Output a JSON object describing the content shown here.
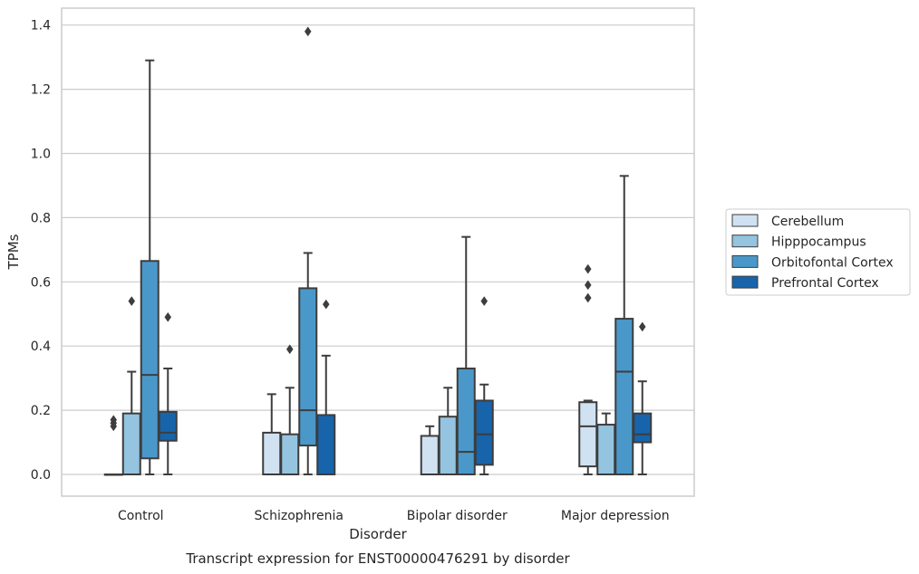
{
  "chart_data": {
    "type": "box",
    "title": "Transcript expression for ENST00000476291 by disorder",
    "xlabel": "Disorder",
    "ylabel": "TPMs",
    "ylim": [
      -0.065,
      1.45
    ],
    "yticks": [
      "0.0",
      "0.2",
      "0.4",
      "0.6",
      "0.8",
      "1.0",
      "1.2",
      "1.4"
    ],
    "categories": [
      "Control",
      "Schizophrenia",
      "Bipolar disorder",
      "Major depression"
    ],
    "grid": true,
    "legend_position": "right",
    "series": [
      {
        "name": "Cerebellum",
        "color": "#d0e1f2",
        "boxes": [
          {
            "whislo": 0.0,
            "q1": 0.0,
            "med": 0.0,
            "q3": 0.0,
            "whishi": 0.0,
            "fliers": [
              0.15,
              0.16,
              0.17
            ]
          },
          {
            "whislo": 0.0,
            "q1": 0.0,
            "med": 0.0,
            "q3": 0.13,
            "whishi": 0.25,
            "fliers": []
          },
          {
            "whislo": 0.0,
            "q1": 0.0,
            "med": 0.0,
            "q3": 0.12,
            "whishi": 0.15,
            "fliers": []
          },
          {
            "whislo": 0.0,
            "q1": 0.025,
            "med": 0.15,
            "q3": 0.225,
            "whishi": 0.23,
            "fliers": [
              0.55,
              0.59,
              0.64
            ]
          }
        ]
      },
      {
        "name": "Hipppocampus",
        "color": "#94c4df",
        "boxes": [
          {
            "whislo": 0.0,
            "q1": 0.0,
            "med": 0.0,
            "q3": 0.19,
            "whishi": 0.32,
            "fliers": [
              0.54
            ]
          },
          {
            "whislo": 0.0,
            "q1": 0.0,
            "med": 0.0,
            "q3": 0.125,
            "whishi": 0.27,
            "fliers": [
              0.39
            ]
          },
          {
            "whislo": 0.0,
            "q1": 0.0,
            "med": 0.0,
            "q3": 0.18,
            "whishi": 0.27,
            "fliers": []
          },
          {
            "whislo": 0.0,
            "q1": 0.0,
            "med": 0.0,
            "q3": 0.155,
            "whishi": 0.19,
            "fliers": []
          }
        ]
      },
      {
        "name": "Orbitofontal Cortex",
        "color": "#4a98c9",
        "boxes": [
          {
            "whislo": 0.0,
            "q1": 0.05,
            "med": 0.31,
            "q3": 0.665,
            "whishi": 1.29,
            "fliers": []
          },
          {
            "whislo": 0.0,
            "q1": 0.09,
            "med": 0.2,
            "q3": 0.58,
            "whishi": 0.69,
            "fliers": [
              1.38
            ]
          },
          {
            "whislo": 0.0,
            "q1": 0.0,
            "med": 0.07,
            "q3": 0.33,
            "whishi": 0.74,
            "fliers": []
          },
          {
            "whislo": 0.0,
            "q1": 0.0,
            "med": 0.32,
            "q3": 0.485,
            "whishi": 0.93,
            "fliers": []
          }
        ]
      },
      {
        "name": "Prefrontal Cortex",
        "color": "#1764ab",
        "boxes": [
          {
            "whislo": 0.0,
            "q1": 0.105,
            "med": 0.13,
            "q3": 0.195,
            "whishi": 0.33,
            "fliers": [
              0.49
            ]
          },
          {
            "whislo": 0.0,
            "q1": 0.0,
            "med": 0.0,
            "q3": 0.185,
            "whishi": 0.37,
            "fliers": [
              0.53
            ]
          },
          {
            "whislo": 0.0,
            "q1": 0.03,
            "med": 0.125,
            "q3": 0.23,
            "whishi": 0.28,
            "fliers": [
              0.54
            ]
          },
          {
            "whislo": 0.0,
            "q1": 0.1,
            "med": 0.125,
            "q3": 0.19,
            "whishi": 0.29,
            "fliers": [
              0.46
            ]
          }
        ]
      }
    ]
  }
}
